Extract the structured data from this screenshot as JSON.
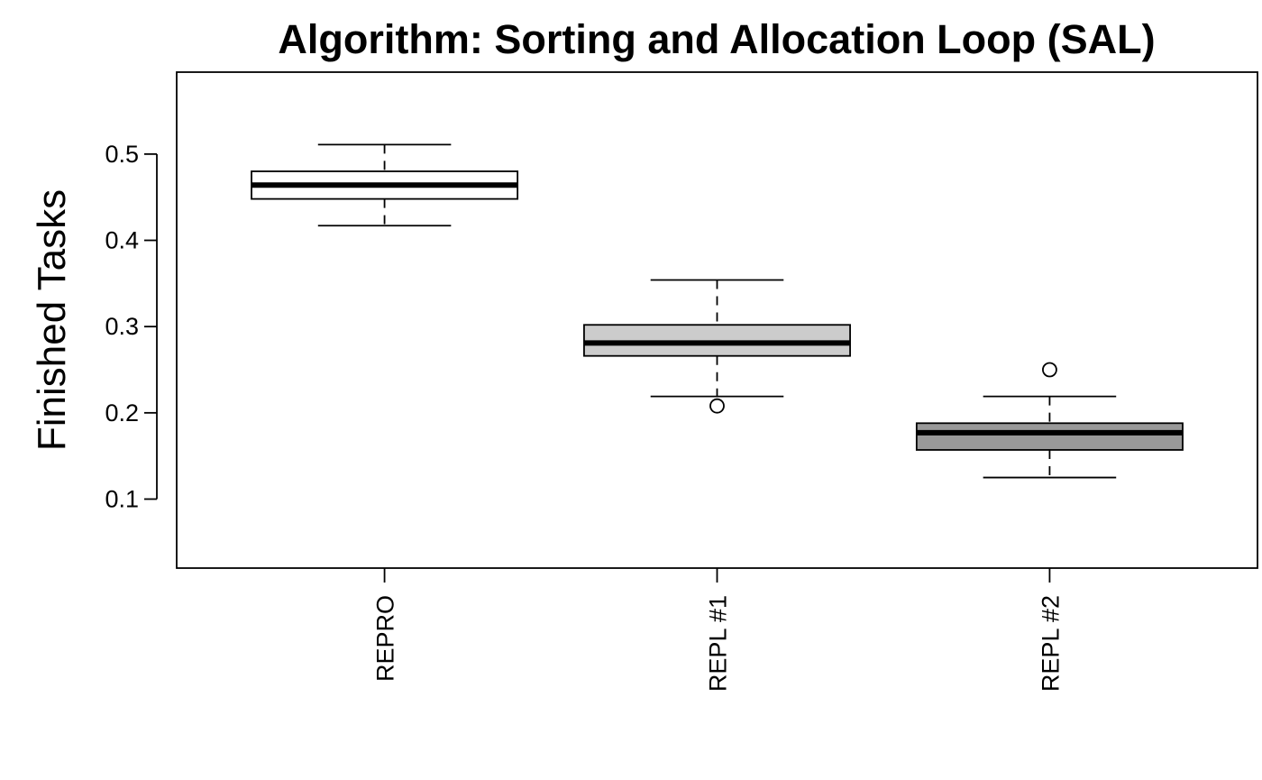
{
  "chart_data": {
    "type": "box",
    "title": "Algorithm: Sorting and Allocation Loop (SAL)",
    "xlabel": "",
    "ylabel": "Finished Tasks",
    "ylim": [
      0.02,
      0.595
    ],
    "yticks": [
      0.1,
      0.2,
      0.3,
      0.4,
      0.5
    ],
    "ytick_labels": [
      "0.1",
      "0.2",
      "0.3",
      "0.4",
      "0.5"
    ],
    "grid": false,
    "legend": "none",
    "categories": [
      "REPRO",
      "REPL #1",
      "REPL #2"
    ],
    "boxes": [
      {
        "category": "REPRO",
        "whisker_low": 0.417,
        "q1": 0.448,
        "median": 0.464,
        "q3": 0.48,
        "whisker_high": 0.511,
        "outliers": [],
        "fill": "#ffffff"
      },
      {
        "category": "REPL #1",
        "whisker_low": 0.219,
        "q1": 0.266,
        "median": 0.281,
        "q3": 0.302,
        "whisker_high": 0.354,
        "outliers": [
          0.208
        ],
        "fill": "#cccccc"
      },
      {
        "category": "REPL #2",
        "whisker_low": 0.125,
        "q1": 0.157,
        "median": 0.177,
        "q3": 0.188,
        "whisker_high": 0.219,
        "outliers": [
          0.25
        ],
        "fill": "#999999"
      }
    ]
  }
}
